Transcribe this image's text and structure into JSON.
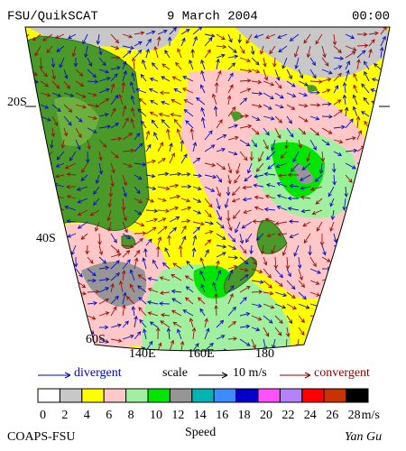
{
  "header": {
    "source": "FSU/QuikSCAT",
    "date": "9 March 2004",
    "time": "00:00"
  },
  "map": {
    "lat_labels": [
      "20S",
      "40S",
      "60S"
    ],
    "lon_labels": [
      "140E",
      "160E",
      "180"
    ]
  },
  "legend": {
    "divergent": "divergent",
    "scale": "scale",
    "scale_value": "10 m/s",
    "convergent": "convergent"
  },
  "colorbar": {
    "colors": [
      "#ffffff",
      "#c8c8c8",
      "#ffff00",
      "#ffc8c8",
      "#a0f0a0",
      "#00e600",
      "#969696",
      "#00b4b4",
      "#3c8cff",
      "#0000c8",
      "#ff50ff",
      "#b482ff",
      "#ff0000",
      "#c83200",
      "#000000"
    ],
    "labels": [
      0,
      2,
      4,
      6,
      8,
      10,
      12,
      14,
      16,
      18,
      20,
      22,
      24,
      26,
      28
    ],
    "unit": "m/s"
  },
  "footer": {
    "org": "COAPS-FSU",
    "title": "Speed",
    "author": "Yan Gu"
  }
}
